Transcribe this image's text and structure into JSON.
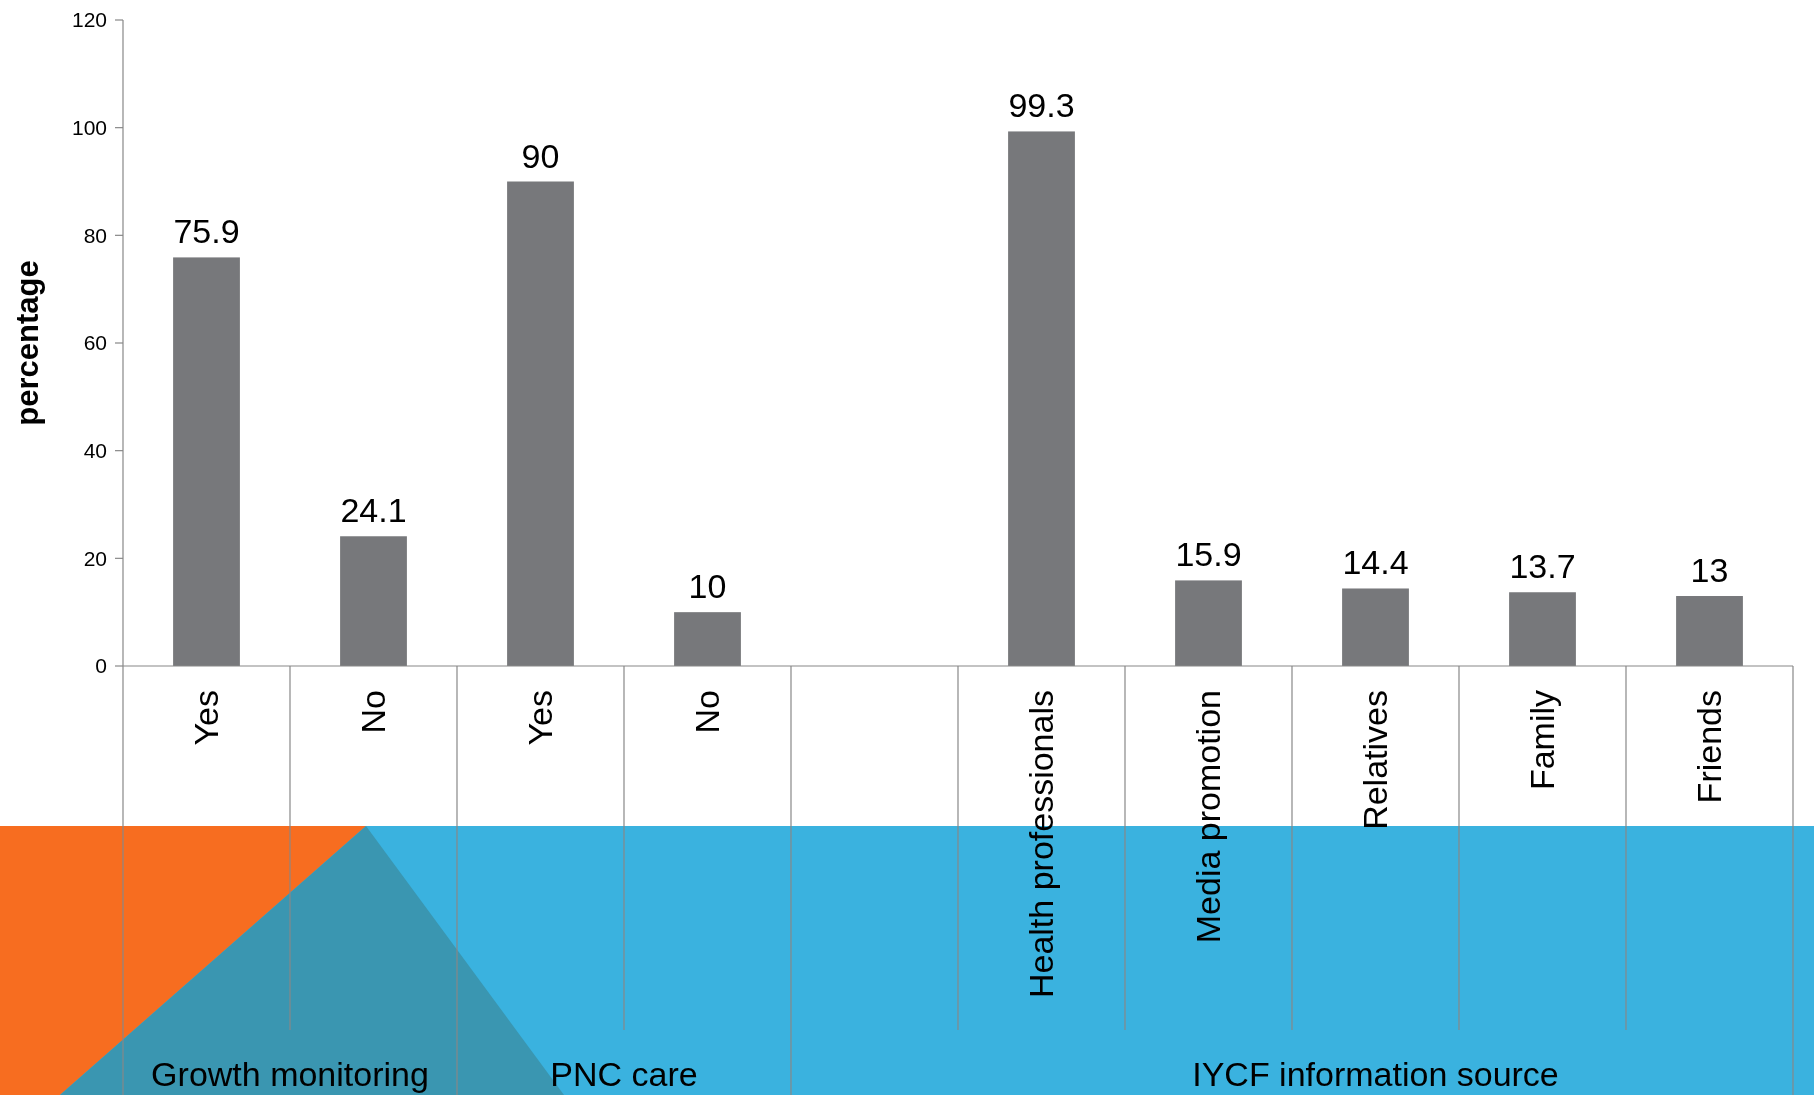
{
  "chart_data": {
    "type": "bar",
    "ylabel": "percentage",
    "categories": [
      "Yes",
      "No",
      "Yes",
      "No",
      null,
      "Health professionals",
      "Media promotion",
      "Relatives",
      "Family",
      "Friends"
    ],
    "values": [
      75.9,
      24.1,
      90,
      10,
      null,
      99.3,
      15.9,
      14.4,
      13.7,
      13
    ],
    "color": "#77787b",
    "ylim": [
      0,
      120
    ],
    "yticks": [
      0,
      20,
      40,
      60,
      80,
      100,
      120
    ],
    "grid": false,
    "data_labels": true,
    "annotations": [
      "Growth monitoring",
      "PNC care",
      "IYCF information source"
    ]
  }
}
